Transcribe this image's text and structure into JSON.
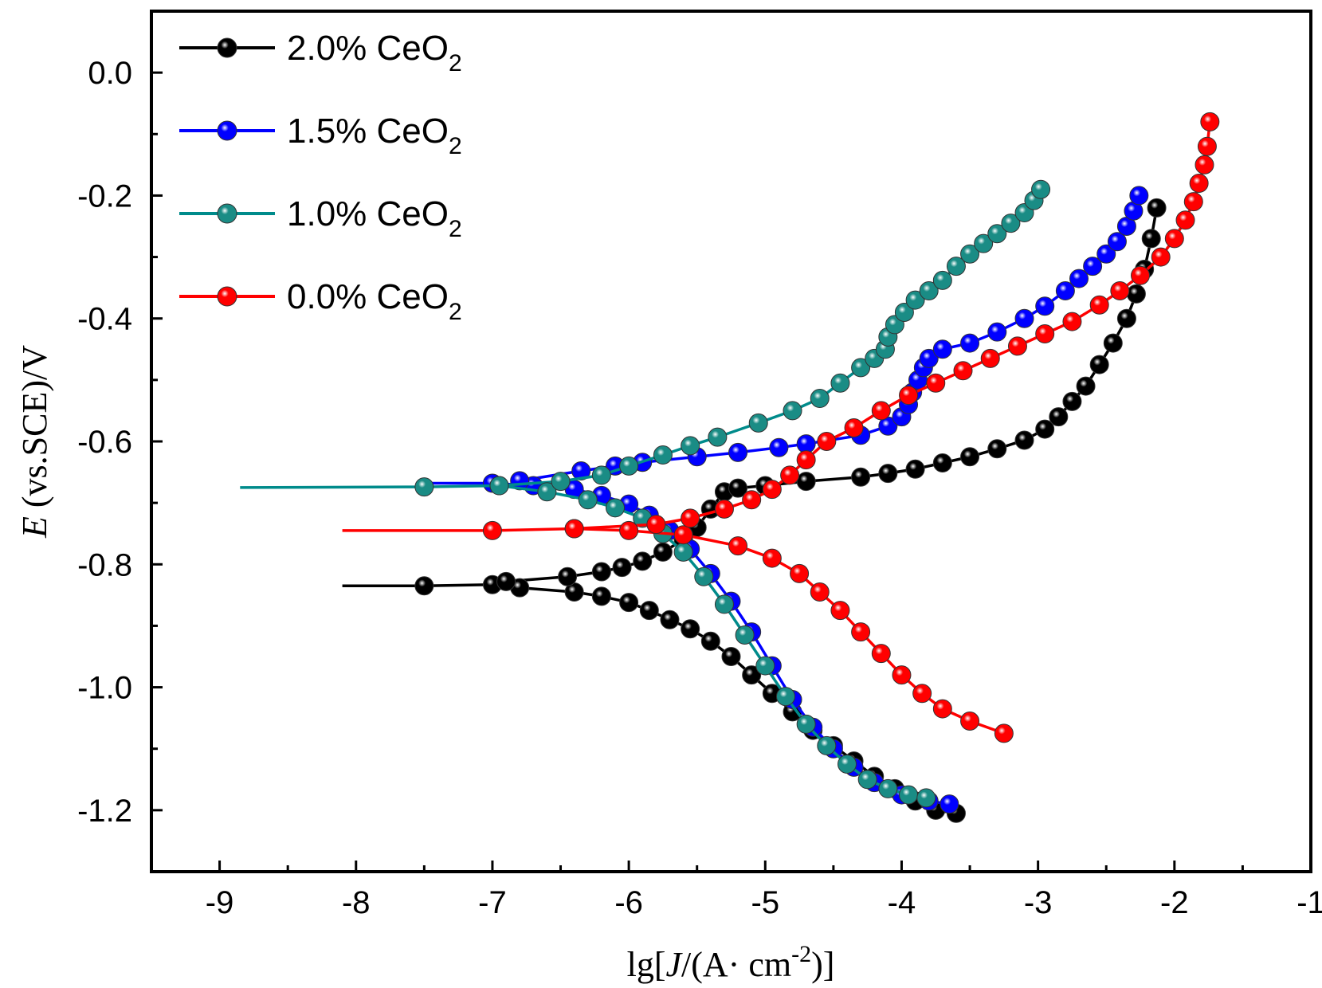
{
  "chart_data": {
    "type": "line",
    "xlabel": {
      "prefix": "lg[",
      "italic": "J",
      "mid": "/(A·  cm",
      "sup": "-2",
      "suffix": ")]"
    },
    "ylabel": {
      "italic": "E",
      "rest": " (vs.SCE)/V"
    },
    "xlim": [
      -9.5,
      -1
    ],
    "ylim": [
      -1.3,
      0.1
    ],
    "x_ticks": [
      -9,
      -8,
      -7,
      -6,
      -5,
      -4,
      -3,
      -2,
      -1
    ],
    "x_tick_labels": [
      "-9",
      "-8",
      "-7",
      "-6",
      "-5",
      "-4",
      "-3",
      "-2",
      "-1"
    ],
    "y_ticks": [
      0.0,
      -0.2,
      -0.4,
      -0.6,
      -0.8,
      -1.0,
      -1.2
    ],
    "y_tick_labels": [
      "0.0",
      "-0.2",
      "-0.4",
      "-0.6",
      "-0.8",
      "-1.0",
      "-1.2"
    ],
    "legend_position": "top-left",
    "series": [
      {
        "name": "2.0% CeO",
        "name_sub": "2",
        "color": "#000000",
        "cathodic": [
          [
            -8.1,
            -0.835
          ],
          [
            -7.5,
            -0.835
          ],
          [
            -7.0,
            -0.833
          ],
          [
            -6.8,
            -0.838
          ],
          [
            -6.4,
            -0.845
          ],
          [
            -6.2,
            -0.852
          ],
          [
            -6.0,
            -0.862
          ],
          [
            -5.85,
            -0.875
          ],
          [
            -5.7,
            -0.89
          ],
          [
            -5.55,
            -0.905
          ],
          [
            -5.4,
            -0.925
          ],
          [
            -5.25,
            -0.95
          ],
          [
            -5.1,
            -0.98
          ],
          [
            -4.95,
            -1.01
          ],
          [
            -4.8,
            -1.04
          ],
          [
            -4.65,
            -1.07
          ],
          [
            -4.5,
            -1.095
          ],
          [
            -4.35,
            -1.12
          ],
          [
            -4.2,
            -1.145
          ],
          [
            -4.05,
            -1.165
          ],
          [
            -3.9,
            -1.185
          ],
          [
            -3.75,
            -1.2
          ],
          [
            -3.6,
            -1.205
          ]
        ],
        "anodic": [
          [
            -6.9,
            -0.828
          ],
          [
            -6.45,
            -0.82
          ],
          [
            -6.2,
            -0.812
          ],
          [
            -6.05,
            -0.805
          ],
          [
            -5.9,
            -0.795
          ],
          [
            -5.75,
            -0.78
          ],
          [
            -5.6,
            -0.76
          ],
          [
            -5.5,
            -0.74
          ],
          [
            -5.4,
            -0.71
          ],
          [
            -5.3,
            -0.682
          ],
          [
            -5.2,
            -0.676
          ],
          [
            -5.0,
            -0.672
          ],
          [
            -4.7,
            -0.665
          ],
          [
            -4.3,
            -0.658
          ],
          [
            -4.1,
            -0.652
          ],
          [
            -3.9,
            -0.645
          ],
          [
            -3.7,
            -0.635
          ],
          [
            -3.5,
            -0.625
          ],
          [
            -3.3,
            -0.612
          ],
          [
            -3.1,
            -0.598
          ],
          [
            -2.95,
            -0.58
          ],
          [
            -2.85,
            -0.56
          ],
          [
            -2.75,
            -0.535
          ],
          [
            -2.65,
            -0.51
          ],
          [
            -2.55,
            -0.475
          ],
          [
            -2.45,
            -0.44
          ],
          [
            -2.35,
            -0.4
          ],
          [
            -2.28,
            -0.36
          ],
          [
            -2.22,
            -0.32
          ],
          [
            -2.17,
            -0.27
          ],
          [
            -2.13,
            -0.22
          ]
        ]
      },
      {
        "name": "1.5% CeO",
        "name_sub": "2",
        "color": "#0000ff",
        "cathodic": [
          [
            -7.55,
            -0.668
          ],
          [
            -7.0,
            -0.668
          ],
          [
            -6.7,
            -0.672
          ],
          [
            -6.4,
            -0.678
          ],
          [
            -6.2,
            -0.688
          ],
          [
            -6.0,
            -0.702
          ],
          [
            -5.85,
            -0.72
          ],
          [
            -5.7,
            -0.745
          ],
          [
            -5.55,
            -0.775
          ],
          [
            -5.4,
            -0.815
          ],
          [
            -5.25,
            -0.86
          ],
          [
            -5.1,
            -0.91
          ],
          [
            -4.95,
            -0.965
          ],
          [
            -4.8,
            -1.02
          ],
          [
            -4.65,
            -1.065
          ],
          [
            -4.5,
            -1.1
          ],
          [
            -4.35,
            -1.13
          ],
          [
            -4.2,
            -1.155
          ],
          [
            -4.0,
            -1.175
          ],
          [
            -3.8,
            -1.185
          ],
          [
            -3.65,
            -1.19
          ]
        ],
        "anodic": [
          [
            -6.8,
            -0.664
          ],
          [
            -6.35,
            -0.648
          ],
          [
            -6.1,
            -0.64
          ],
          [
            -5.9,
            -0.634
          ],
          [
            -5.5,
            -0.625
          ],
          [
            -5.2,
            -0.618
          ],
          [
            -4.9,
            -0.61
          ],
          [
            -4.7,
            -0.604
          ],
          [
            -4.3,
            -0.59
          ],
          [
            -4.1,
            -0.575
          ],
          [
            -4.0,
            -0.56
          ],
          [
            -3.95,
            -0.54
          ],
          [
            -3.92,
            -0.52
          ],
          [
            -3.88,
            -0.5
          ],
          [
            -3.84,
            -0.48
          ],
          [
            -3.8,
            -0.465
          ],
          [
            -3.7,
            -0.45
          ],
          [
            -3.5,
            -0.44
          ],
          [
            -3.3,
            -0.422
          ],
          [
            -3.1,
            -0.4
          ],
          [
            -2.95,
            -0.38
          ],
          [
            -2.8,
            -0.355
          ],
          [
            -2.7,
            -0.335
          ],
          [
            -2.6,
            -0.315
          ],
          [
            -2.5,
            -0.295
          ],
          [
            -2.42,
            -0.275
          ],
          [
            -2.35,
            -0.25
          ],
          [
            -2.3,
            -0.225
          ],
          [
            -2.26,
            -0.2
          ]
        ]
      },
      {
        "name": "1.0% CeO",
        "name_sub": "2",
        "color": "#008b8b",
        "marker_color": "#1a8c85",
        "cathodic": [
          [
            -8.85,
            -0.675
          ],
          [
            -7.5,
            -0.674
          ],
          [
            -6.95,
            -0.672
          ],
          [
            -6.6,
            -0.682
          ],
          [
            -6.3,
            -0.695
          ],
          [
            -6.1,
            -0.708
          ],
          [
            -5.9,
            -0.725
          ],
          [
            -5.75,
            -0.75
          ],
          [
            -5.6,
            -0.78
          ],
          [
            -5.45,
            -0.82
          ],
          [
            -5.3,
            -0.865
          ],
          [
            -5.15,
            -0.915
          ],
          [
            -5.0,
            -0.965
          ],
          [
            -4.85,
            -1.015
          ],
          [
            -4.7,
            -1.06
          ],
          [
            -4.55,
            -1.095
          ],
          [
            -4.4,
            -1.125
          ],
          [
            -4.25,
            -1.15
          ],
          [
            -4.1,
            -1.165
          ],
          [
            -3.95,
            -1.175
          ],
          [
            -3.82,
            -1.18
          ]
        ],
        "anodic": [
          [
            -6.95,
            -0.672
          ],
          [
            -6.5,
            -0.665
          ],
          [
            -6.2,
            -0.655
          ],
          [
            -6.0,
            -0.64
          ],
          [
            -5.75,
            -0.622
          ],
          [
            -5.55,
            -0.607
          ],
          [
            -5.35,
            -0.593
          ],
          [
            -5.05,
            -0.57
          ],
          [
            -4.8,
            -0.55
          ],
          [
            -4.6,
            -0.53
          ],
          [
            -4.45,
            -0.505
          ],
          [
            -4.3,
            -0.48
          ],
          [
            -4.2,
            -0.465
          ],
          [
            -4.12,
            -0.45
          ],
          [
            -4.1,
            -0.43
          ],
          [
            -4.05,
            -0.41
          ],
          [
            -3.98,
            -0.39
          ],
          [
            -3.9,
            -0.37
          ],
          [
            -3.8,
            -0.355
          ],
          [
            -3.7,
            -0.338
          ],
          [
            -3.6,
            -0.315
          ],
          [
            -3.5,
            -0.295
          ],
          [
            -3.4,
            -0.278
          ],
          [
            -3.3,
            -0.262
          ],
          [
            -3.2,
            -0.245
          ],
          [
            -3.1,
            -0.228
          ],
          [
            -3.03,
            -0.208
          ],
          [
            -2.98,
            -0.19
          ]
        ]
      },
      {
        "name": "0.0% CeO",
        "name_sub": "2",
        "color": "#ff0000",
        "cathodic": [
          [
            -8.1,
            -0.745
          ],
          [
            -7.0,
            -0.745
          ],
          [
            -6.4,
            -0.742
          ],
          [
            -6.0,
            -0.745
          ],
          [
            -5.6,
            -0.752
          ],
          [
            -5.2,
            -0.77
          ],
          [
            -4.95,
            -0.79
          ],
          [
            -4.75,
            -0.815
          ],
          [
            -4.6,
            -0.845
          ],
          [
            -4.45,
            -0.875
          ],
          [
            -4.3,
            -0.91
          ],
          [
            -4.15,
            -0.945
          ],
          [
            -4.0,
            -0.98
          ],
          [
            -3.85,
            -1.01
          ],
          [
            -3.7,
            -1.035
          ],
          [
            -3.5,
            -1.055
          ],
          [
            -3.25,
            -1.075
          ]
        ],
        "anodic": [
          [
            -6.4,
            -0.742
          ],
          [
            -5.8,
            -0.735
          ],
          [
            -5.55,
            -0.725
          ],
          [
            -5.3,
            -0.71
          ],
          [
            -5.1,
            -0.695
          ],
          [
            -4.95,
            -0.678
          ],
          [
            -4.82,
            -0.655
          ],
          [
            -4.7,
            -0.63
          ],
          [
            -4.55,
            -0.6
          ],
          [
            -4.35,
            -0.578
          ],
          [
            -4.15,
            -0.55
          ],
          [
            -3.95,
            -0.525
          ],
          [
            -3.75,
            -0.505
          ],
          [
            -3.55,
            -0.485
          ],
          [
            -3.35,
            -0.465
          ],
          [
            -3.15,
            -0.445
          ],
          [
            -2.95,
            -0.425
          ],
          [
            -2.75,
            -0.405
          ],
          [
            -2.55,
            -0.378
          ],
          [
            -2.4,
            -0.355
          ],
          [
            -2.25,
            -0.33
          ],
          [
            -2.1,
            -0.3
          ],
          [
            -2.0,
            -0.27
          ],
          [
            -1.92,
            -0.24
          ],
          [
            -1.86,
            -0.21
          ],
          [
            -1.82,
            -0.18
          ],
          [
            -1.78,
            -0.15
          ],
          [
            -1.76,
            -0.12
          ],
          [
            -1.74,
            -0.08
          ]
        ]
      }
    ]
  }
}
